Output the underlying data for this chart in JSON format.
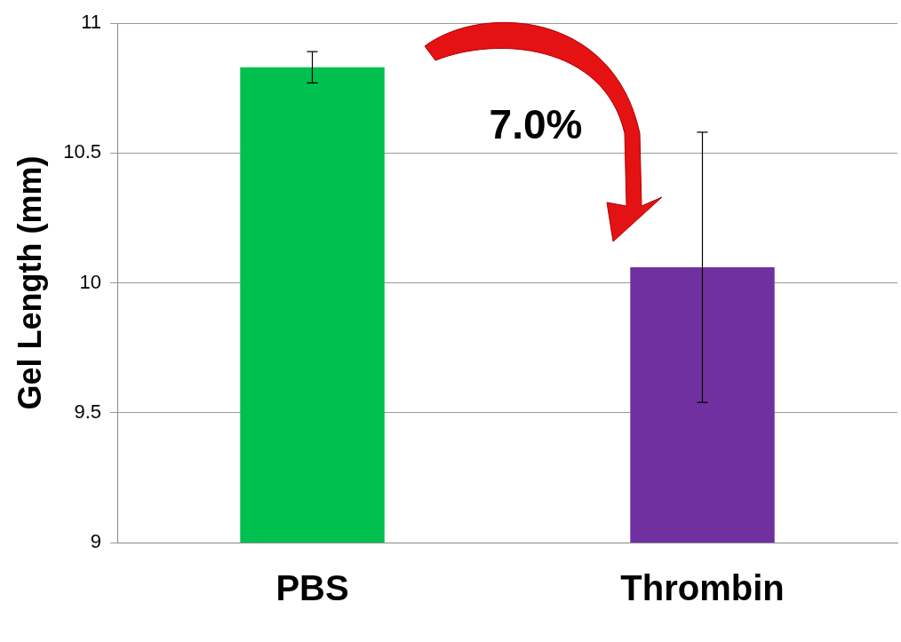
{
  "chart_data": {
    "type": "bar",
    "ylabel": "Gel Length (mm)",
    "categories": [
      "PBS",
      "Thrombin"
    ],
    "values": [
      10.83,
      10.06
    ],
    "colors": [
      "#00c050",
      "#7030a0"
    ],
    "errors": [
      0.06,
      0.52
    ],
    "ylim": [
      9,
      11
    ],
    "yticks": [
      9,
      9.5,
      10,
      10.5,
      11
    ],
    "grid": "y",
    "annotations": [
      "7.0%"
    ]
  }
}
